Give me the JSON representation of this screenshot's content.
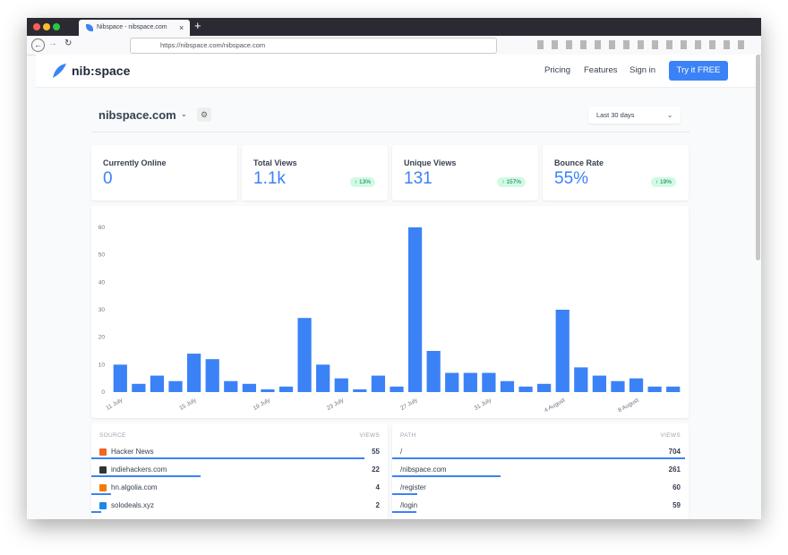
{
  "browser": {
    "tab_title": "Nibspace - nibspace.com",
    "url": "https://nibspace.com/nibspace.com"
  },
  "nav": {
    "logo": "nib:space",
    "links": [
      "Pricing",
      "Features",
      "Sign in"
    ],
    "cta": "Try it FREE"
  },
  "site": {
    "name": "nibspace.com",
    "range": "Last 30 days"
  },
  "stats": [
    {
      "label": "Currently Online",
      "value": "0"
    },
    {
      "label": "Total Views",
      "value": "1.1k",
      "change": "13%"
    },
    {
      "label": "Unique Views",
      "value": "131",
      "change": "157%"
    },
    {
      "label": "Bounce Rate",
      "value": "55%",
      "change": "19%"
    }
  ],
  "chart_data": {
    "type": "bar",
    "color": "#3b82f6",
    "grid": false,
    "categories": [
      "11 July",
      null,
      null,
      null,
      "15 July",
      null,
      null,
      null,
      "19 July",
      null,
      null,
      null,
      "23 July",
      null,
      null,
      null,
      "27 July",
      null,
      null,
      null,
      "31 July",
      null,
      null,
      null,
      "4 August",
      null,
      null,
      null,
      "8 August",
      null,
      null
    ],
    "values": [
      10,
      3,
      6,
      4,
      14,
      12,
      4,
      3,
      1,
      2,
      27,
      10,
      5,
      1,
      6,
      2,
      60,
      15,
      7,
      7,
      7,
      4,
      2,
      3,
      30,
      9,
      6,
      4,
      5,
      2,
      2
    ],
    "ylim": [
      0,
      60
    ],
    "yticks": [
      0,
      10,
      20,
      30,
      40,
      50,
      60
    ]
  },
  "sources": {
    "headers": [
      "SOURCE",
      "VIEWS"
    ],
    "rows": [
      {
        "name": "Hacker News",
        "views": 55,
        "color": "#f26522"
      },
      {
        "name": "indiehackers.com",
        "views": 22,
        "color": "#333333"
      },
      {
        "name": "hn.algolia.com",
        "views": 4,
        "color": "#f57c00"
      },
      {
        "name": "solodeals.xyz",
        "views": 2,
        "color": "#1e88e5"
      }
    ]
  },
  "pages": {
    "headers": [
      "PATH",
      "VIEWS"
    ],
    "rows": [
      {
        "name": "/",
        "views": 704
      },
      {
        "name": "/nibspace.com",
        "views": 261
      },
      {
        "name": "/register",
        "views": 60
      },
      {
        "name": "/login",
        "views": 59
      }
    ]
  }
}
